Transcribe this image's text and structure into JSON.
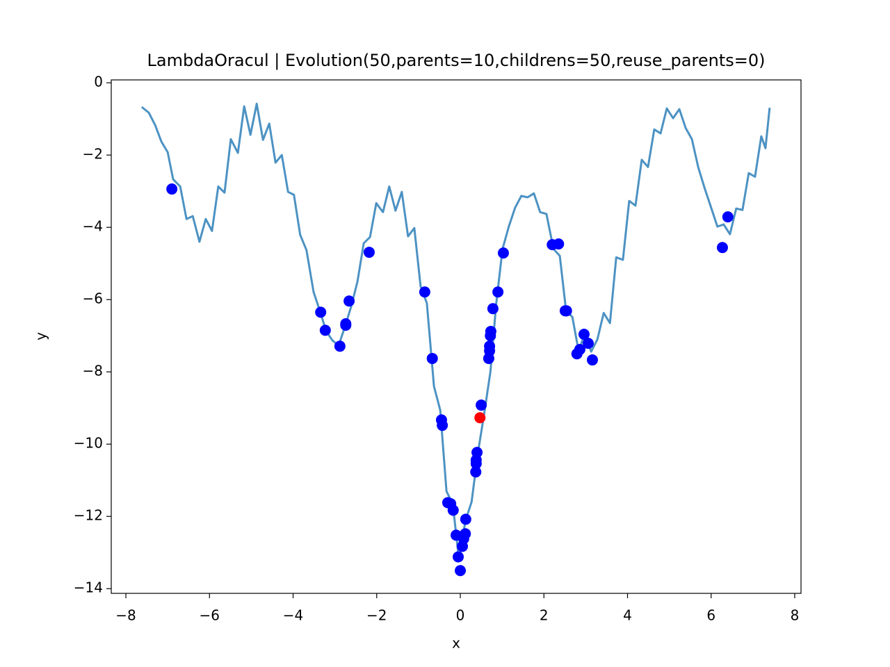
{
  "chart_data": {
    "type": "line",
    "title": "LambdaOracul | Evolution(50,parents=10,childrens=50,reuse_parents=0)",
    "xlabel": "x",
    "ylabel": "y",
    "xlim": [
      -8.35,
      8.15
    ],
    "ylim": [
      -14.13,
      0.08
    ],
    "xticks": [
      {
        "value": -8,
        "label": "−8"
      },
      {
        "value": -6,
        "label": "−6"
      },
      {
        "value": -4,
        "label": "−4"
      },
      {
        "value": -2,
        "label": "−2"
      },
      0,
      2,
      4,
      6,
      8
    ],
    "yticks": [
      0,
      {
        "value": -2,
        "label": "−2"
      },
      {
        "value": -4,
        "label": "−4"
      },
      {
        "value": -6,
        "label": "−6"
      },
      {
        "value": -8,
        "label": "−8"
      },
      {
        "value": -10,
        "label": "−10"
      },
      {
        "value": -12,
        "label": "−12"
      },
      {
        "value": -14,
        "label": "−14"
      }
    ],
    "series": [
      {
        "type": "line",
        "color": "#1f77b4",
        "x": [
          -7.62,
          -7.45,
          -7.3,
          -7.15,
          -7.0,
          -6.87,
          -6.7,
          -6.55,
          -6.4,
          -6.24,
          -6.09,
          -5.94,
          -5.79,
          -5.64,
          -5.49,
          -5.32,
          -5.17,
          -5.02,
          -4.87,
          -4.72,
          -4.57,
          -4.42,
          -4.27,
          -4.12,
          -3.98,
          -3.83,
          -3.68,
          -3.51,
          -3.36,
          -3.21,
          -3.06,
          -2.91,
          -2.76,
          -2.61,
          -2.46,
          -2.31,
          -2.16,
          -2.01,
          -1.85,
          -1.7,
          -1.55,
          -1.4,
          -1.25,
          -1.1,
          -0.95,
          -0.8,
          -0.63,
          -0.48,
          -0.33,
          -0.18,
          -0.03,
          0.12,
          0.27,
          0.42,
          0.57,
          0.72,
          0.86,
          1.01,
          1.16,
          1.31,
          1.46,
          1.61,
          1.76,
          1.91,
          2.06,
          2.23,
          2.38,
          2.53,
          2.68,
          2.83,
          2.98,
          3.13,
          3.28,
          3.43,
          3.58,
          3.73,
          3.89,
          4.04,
          4.19,
          4.34,
          4.49,
          4.64,
          4.79,
          4.94,
          5.09,
          5.24,
          5.39,
          5.54,
          5.69,
          5.84,
          5.99,
          6.15,
          6.3,
          6.45,
          6.6,
          6.75,
          6.9,
          7.05,
          7.2,
          7.3,
          7.4
        ],
        "values": [
          -0.67,
          -0.83,
          -1.17,
          -1.63,
          -1.92,
          -2.67,
          -2.87,
          -3.77,
          -3.69,
          -4.4,
          -3.77,
          -4.1,
          -2.87,
          -3.04,
          -1.56,
          -1.94,
          -0.65,
          -1.44,
          -0.58,
          -1.58,
          -1.13,
          -2.21,
          -2.0,
          -3.02,
          -3.1,
          -4.21,
          -4.63,
          -5.79,
          -6.31,
          -6.87,
          -7.13,
          -7.27,
          -6.75,
          -6.19,
          -5.5,
          -4.44,
          -4.27,
          -3.33,
          -3.58,
          -2.87,
          -3.54,
          -3.02,
          -4.25,
          -4.02,
          -5.63,
          -6.1,
          -8.4,
          -9.06,
          -11.31,
          -11.65,
          -13.23,
          -12.13,
          -11.6,
          -10.25,
          -9.17,
          -8.0,
          -6.1,
          -4.6,
          -3.98,
          -3.46,
          -3.13,
          -3.17,
          -3.06,
          -3.58,
          -3.63,
          -4.6,
          -4.79,
          -6.31,
          -6.48,
          -7.42,
          -6.94,
          -7.44,
          -7.1,
          -6.37,
          -6.65,
          -4.83,
          -4.9,
          -3.27,
          -3.4,
          -2.13,
          -2.33,
          -1.29,
          -1.4,
          -0.71,
          -0.98,
          -0.73,
          -1.25,
          -1.56,
          -2.33,
          -2.9,
          -3.42,
          -3.98,
          -3.92,
          -4.19,
          -3.48,
          -3.52,
          -2.5,
          -2.6,
          -1.48,
          -1.81,
          -0.69
        ]
      },
      {
        "type": "scatter",
        "color": "#0000ff",
        "x": [
          -6.9,
          -3.34,
          -3.23,
          -2.88,
          -2.74,
          -2.74,
          -2.66,
          -2.18,
          -0.85,
          -0.67,
          -0.45,
          -0.43,
          -0.3,
          -0.23,
          -0.17,
          -0.1,
          -0.05,
          0.0,
          0.05,
          0.08,
          0.12,
          0.13,
          0.37,
          0.38,
          0.38,
          0.4,
          0.5,
          0.68,
          0.7,
          0.7,
          0.72,
          0.73,
          0.78,
          0.9,
          1.03,
          2.2,
          2.35,
          2.51,
          2.54,
          2.79,
          2.86,
          2.96,
          3.06,
          3.16,
          6.27,
          6.4
        ],
        "values": [
          -2.94,
          -6.35,
          -6.85,
          -7.29,
          -6.67,
          -6.71,
          -6.04,
          -4.69,
          -5.79,
          -7.63,
          -9.33,
          -9.48,
          -11.62,
          -11.65,
          -11.83,
          -12.52,
          -13.12,
          -13.5,
          -12.83,
          -12.62,
          -12.48,
          -12.08,
          -10.77,
          -10.54,
          -10.44,
          -10.23,
          -8.92,
          -7.63,
          -7.42,
          -7.29,
          -7.0,
          -6.88,
          -6.25,
          -5.79,
          -4.71,
          -4.48,
          -4.46,
          -6.31,
          -6.31,
          -7.5,
          -7.38,
          -6.96,
          -7.21,
          -7.67,
          -4.56,
          -3.71
        ]
      },
      {
        "type": "scatter",
        "color": "#ff0000",
        "x": [
          0.47
        ],
        "values": [
          -9.27
        ]
      }
    ]
  }
}
